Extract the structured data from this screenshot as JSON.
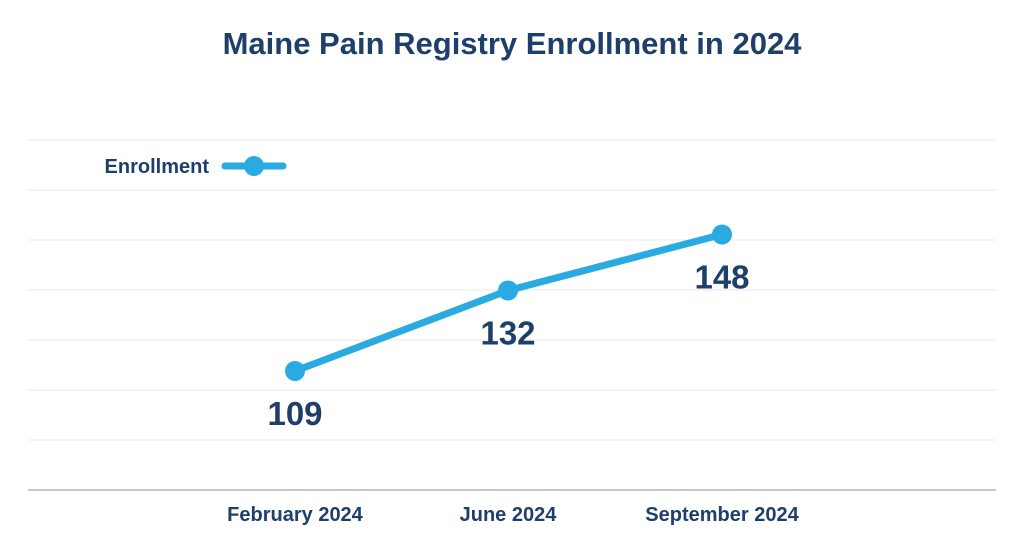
{
  "chart_data": {
    "type": "line",
    "title": "Maine Pain Registry Enrollment in 2024",
    "xlabel": "",
    "ylabel": "",
    "categories": [
      "February 2024",
      "June 2024",
      "September 2024"
    ],
    "series": [
      {
        "name": "Enrollment",
        "values": [
          109,
          132,
          148
        ]
      }
    ],
    "data_labels": [
      "109",
      "132",
      "148"
    ],
    "ylim": [
      75,
      175
    ],
    "grid": true,
    "legend_position": "top-left",
    "colors": {
      "series": "#29abe2",
      "text": "#1f3f6b",
      "grid": "#e8e8e8",
      "axis": "#c8c8c8"
    }
  }
}
